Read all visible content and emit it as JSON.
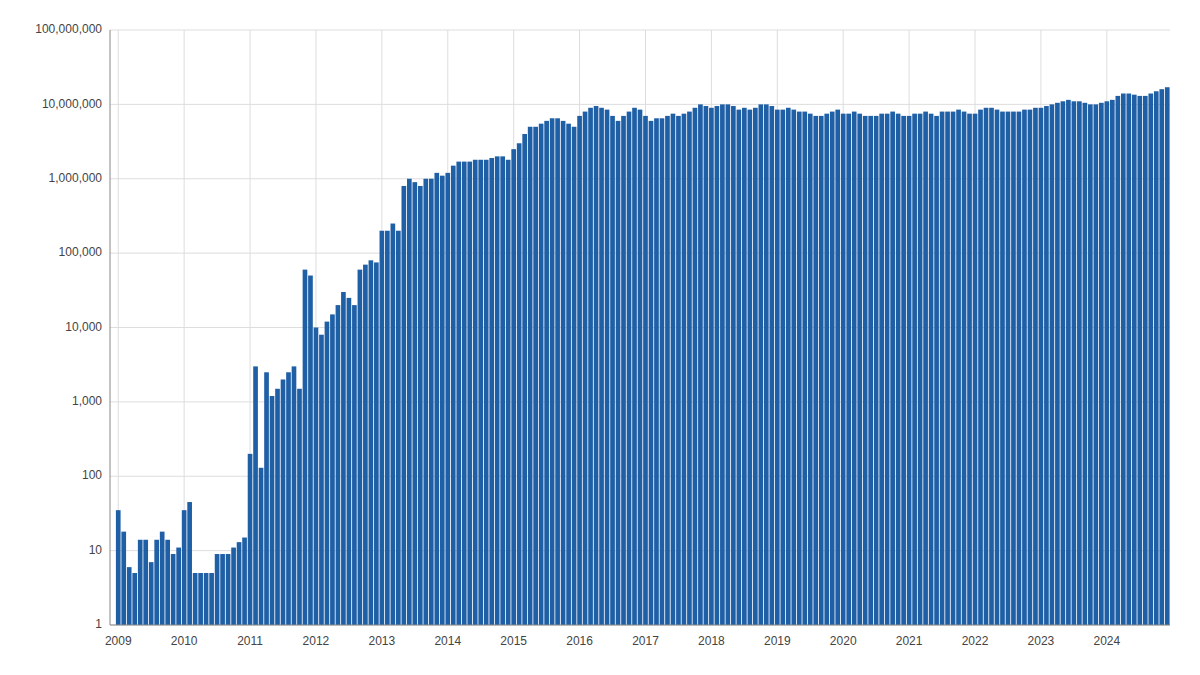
{
  "chart_data": {
    "type": "bar",
    "categories": [
      "2009",
      null,
      null,
      null,
      null,
      null,
      null,
      null,
      null,
      null,
      null,
      null,
      "2010",
      null,
      null,
      null,
      null,
      null,
      null,
      null,
      null,
      null,
      null,
      null,
      "2011",
      null,
      null,
      null,
      null,
      null,
      null,
      null,
      null,
      null,
      null,
      null,
      "2012",
      null,
      null,
      null,
      null,
      null,
      null,
      null,
      null,
      null,
      null,
      null,
      "2013",
      null,
      null,
      null,
      null,
      null,
      null,
      null,
      null,
      null,
      null,
      null,
      "2014",
      null,
      null,
      null,
      null,
      null,
      null,
      null,
      null,
      null,
      null,
      null,
      "2015",
      null,
      null,
      null,
      null,
      null,
      null,
      null,
      null,
      null,
      null,
      null,
      "2016",
      null,
      null,
      null,
      null,
      null,
      null,
      null,
      null,
      null,
      null,
      null,
      "2017",
      null,
      null,
      null,
      null,
      null,
      null,
      null,
      null,
      null,
      null,
      null,
      "2018",
      null,
      null,
      null,
      null,
      null,
      null,
      null,
      null,
      null,
      null,
      null,
      "2019",
      null,
      null,
      null,
      null,
      null,
      null,
      null,
      null,
      null,
      null,
      null,
      "2020",
      null,
      null,
      null,
      null,
      null,
      null,
      null,
      null,
      null,
      null,
      null,
      "2021",
      null,
      null,
      null,
      null,
      null,
      null,
      null,
      null,
      null,
      null,
      null,
      "2022",
      null,
      null,
      null,
      null,
      null,
      null,
      null,
      null,
      null,
      null,
      null,
      "2023",
      null,
      null,
      null,
      null,
      null,
      null,
      null,
      null,
      null,
      null,
      null,
      "2024",
      null,
      null,
      null,
      null,
      null,
      null,
      null,
      null,
      null,
      null,
      null
    ],
    "values": [
      35,
      18,
      6,
      5,
      14,
      14,
      7,
      14,
      18,
      14,
      9,
      11,
      35,
      45,
      5,
      5,
      5,
      5,
      9,
      9,
      9,
      11,
      13,
      15,
      200,
      3000,
      130,
      2500,
      1200,
      1500,
      2000,
      2500,
      3000,
      1500,
      60000,
      50000,
      10000,
      8000,
      12000,
      15000,
      20000,
      30000,
      25000,
      20000,
      60000,
      70000,
      80000,
      75000,
      200000,
      200000,
      250000,
      200000,
      800000,
      1000000,
      900000,
      800000,
      1000000,
      1000000,
      1200000,
      1100000,
      1200000,
      1500000,
      1700000,
      1700000,
      1700000,
      1800000,
      1800000,
      1800000,
      1900000,
      2000000,
      2000000,
      1800000,
      2500000,
      3000000,
      4000000,
      5000000,
      5000000,
      5500000,
      6000000,
      6500000,
      6500000,
      6000000,
      5500000,
      5000000,
      7000000,
      8000000,
      9000000,
      9500000,
      9000000,
      8500000,
      7000000,
      6000000,
      7000000,
      8000000,
      9000000,
      8500000,
      7000000,
      6000000,
      6500000,
      6500000,
      7000000,
      7500000,
      7000000,
      7500000,
      8000000,
      9000000,
      10000000,
      9500000,
      9000000,
      9500000,
      10000000,
      10000000,
      9500000,
      8500000,
      9000000,
      8500000,
      9000000,
      10000000,
      10000000,
      9500000,
      8500000,
      8500000,
      9000000,
      8500000,
      8000000,
      8000000,
      7500000,
      7000000,
      7000000,
      7500000,
      8000000,
      8500000,
      7500000,
      7500000,
      8000000,
      7500000,
      7000000,
      7000000,
      7000000,
      7500000,
      7500000,
      8000000,
      7500000,
      7000000,
      7000000,
      7500000,
      7500000,
      8000000,
      7500000,
      7000000,
      8000000,
      8000000,
      8000000,
      8500000,
      8000000,
      7500000,
      7500000,
      8500000,
      9000000,
      9000000,
      8500000,
      8000000,
      8000000,
      8000000,
      8000000,
      8500000,
      8500000,
      9000000,
      9000000,
      9500000,
      10000000,
      10500000,
      11000000,
      11500000,
      11000000,
      11000000,
      10500000,
      10000000,
      10000000,
      10500000,
      11000000,
      11500000,
      13000000,
      14000000,
      14000000,
      13500000,
      13000000,
      13000000,
      14000000,
      15000000,
      16000000,
      17000000
    ],
    "color": "#1f5fa6",
    "log": "y",
    "ylim": [
      1,
      100000000
    ],
    "yticks": [
      1,
      10,
      100,
      {
        "value": 1000,
        "label": "1,000"
      },
      {
        "value": 10000,
        "label": "10,000"
      },
      {
        "value": 100000,
        "label": "100,000"
      },
      {
        "value": 1000000,
        "label": "1,000,000"
      },
      {
        "value": 10000000,
        "label": "10,000,000"
      },
      {
        "value": 100000000,
        "label": "100,000,000"
      }
    ],
    "grid": true
  }
}
